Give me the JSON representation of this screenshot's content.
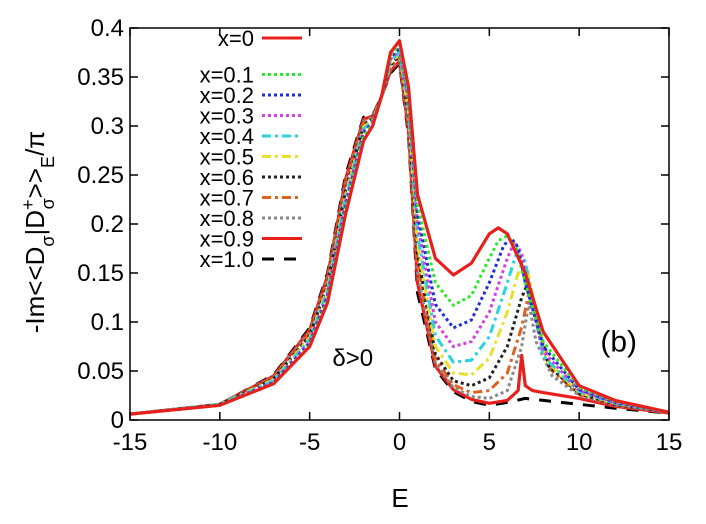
{
  "chart_data": {
    "type": "line",
    "title": "",
    "xlabel": "E",
    "ylabel_parts": {
      "prefix": "-Im<<D",
      "sub1": "σ",
      "mid": "|D",
      "sup": "+",
      "sub2": "σ",
      "after": ">>",
      "sub3": "E",
      "suffix": "/π"
    },
    "xlim": [
      -15,
      15
    ],
    "ylim": [
      0,
      0.4
    ],
    "x_ticks": [
      -15,
      -10,
      -5,
      0,
      5,
      10,
      15
    ],
    "x_tick_labels": [
      "-15",
      "-10",
      "-5",
      "0",
      "5",
      "10",
      "15"
    ],
    "y_ticks": [
      0,
      0.05,
      0.1,
      0.15,
      0.2,
      0.25,
      0.3,
      0.35,
      0.4
    ],
    "y_tick_labels": [
      "0",
      "0.05",
      "0.1",
      "0.15",
      "0.2",
      "0.25",
      "0.3",
      "0.35",
      "0.4"
    ],
    "grid": false,
    "legend_position": "top-left",
    "annotations": [
      {
        "text": "δ>0",
        "x": -2.6,
        "y": 0.055
      },
      {
        "text": "(b)",
        "x": 12.2,
        "y": 0.07
      }
    ],
    "series": [
      {
        "name": "x=0",
        "color": "#e8201c",
        "dash": "solid",
        "x": [
          -15,
          -10,
          -7,
          -5,
          -4,
          -3,
          -2,
          -1.5,
          -1,
          -0.5,
          0,
          0.5,
          1,
          2,
          3,
          4,
          5,
          5.5,
          6,
          7,
          8,
          10,
          12,
          15
        ],
        "y": [
          0.006,
          0.015,
          0.037,
          0.075,
          0.12,
          0.21,
          0.285,
          0.3,
          0.33,
          0.375,
          0.387,
          0.34,
          0.23,
          0.165,
          0.148,
          0.16,
          0.19,
          0.196,
          0.19,
          0.15,
          0.09,
          0.035,
          0.02,
          0.008
        ]
      },
      {
        "name": "x=0.1",
        "color": "#2ee82e",
        "dash": "dot",
        "x": [
          -15,
          -10,
          -7,
          -5,
          -4,
          -3,
          -2,
          -1.5,
          -1,
          -0.5,
          0,
          0.5,
          1,
          2,
          3,
          4,
          5,
          5.5,
          6,
          6.5,
          7,
          8,
          10,
          12,
          15
        ],
        "y": [
          0.006,
          0.015,
          0.037,
          0.076,
          0.123,
          0.214,
          0.29,
          0.302,
          0.33,
          0.372,
          0.383,
          0.333,
          0.22,
          0.14,
          0.117,
          0.127,
          0.165,
          0.183,
          0.188,
          0.175,
          0.14,
          0.08,
          0.033,
          0.019,
          0.008
        ]
      },
      {
        "name": "x=0.2",
        "color": "#1f2fd4",
        "dash": "dot",
        "x": [
          -15,
          -10,
          -7,
          -5,
          -4,
          -3,
          -2,
          -1.5,
          -1,
          -0.5,
          0,
          0.5,
          1,
          2,
          3,
          4,
          5,
          5.8,
          6.2,
          6.6,
          7,
          8,
          10,
          12,
          15
        ],
        "y": [
          0.006,
          0.015,
          0.038,
          0.078,
          0.126,
          0.218,
          0.293,
          0.303,
          0.33,
          0.37,
          0.38,
          0.33,
          0.21,
          0.118,
          0.094,
          0.102,
          0.14,
          0.178,
          0.186,
          0.176,
          0.14,
          0.075,
          0.031,
          0.018,
          0.008
        ]
      },
      {
        "name": "x=0.3",
        "color": "#d63fe0",
        "dash": "dot",
        "x": [
          -15,
          -10,
          -7,
          -5,
          -4,
          -3,
          -2,
          -1.5,
          -1,
          -0.5,
          0,
          0.5,
          1,
          2,
          3,
          4,
          5,
          6,
          6.4,
          6.8,
          7.2,
          8,
          10,
          12,
          15
        ],
        "y": [
          0.006,
          0.015,
          0.039,
          0.08,
          0.129,
          0.222,
          0.295,
          0.304,
          0.33,
          0.368,
          0.378,
          0.325,
          0.2,
          0.1,
          0.075,
          0.08,
          0.11,
          0.165,
          0.182,
          0.17,
          0.13,
          0.07,
          0.03,
          0.018,
          0.008
        ]
      },
      {
        "name": "x=0.4",
        "color": "#27d4e0",
        "dash": "dashdot",
        "x": [
          -15,
          -10,
          -7,
          -5,
          -4,
          -3,
          -2,
          -1.5,
          -1,
          -0.5,
          0,
          0.5,
          1,
          2,
          3,
          4,
          5,
          6,
          6.5,
          7,
          7.4,
          8,
          10,
          12,
          15
        ],
        "y": [
          0.006,
          0.016,
          0.04,
          0.082,
          0.132,
          0.226,
          0.297,
          0.305,
          0.33,
          0.366,
          0.376,
          0.32,
          0.19,
          0.086,
          0.059,
          0.061,
          0.085,
          0.14,
          0.17,
          0.162,
          0.12,
          0.065,
          0.029,
          0.017,
          0.008
        ]
      },
      {
        "name": "x=0.5",
        "color": "#e8e02a",
        "dash": "dashdot",
        "x": [
          -15,
          -10,
          -7,
          -5,
          -4,
          -3,
          -2,
          -1.5,
          -1,
          -0.5,
          0,
          0.5,
          1,
          2,
          3,
          4,
          5,
          6,
          6.6,
          7.1,
          7.6,
          8.2,
          10,
          12,
          15
        ],
        "y": [
          0.006,
          0.016,
          0.041,
          0.084,
          0.135,
          0.23,
          0.299,
          0.306,
          0.33,
          0.364,
          0.374,
          0.315,
          0.18,
          0.075,
          0.048,
          0.046,
          0.063,
          0.11,
          0.15,
          0.155,
          0.11,
          0.06,
          0.028,
          0.017,
          0.008
        ]
      },
      {
        "name": "x=0.6",
        "color": "#222222",
        "dash": "dot",
        "x": [
          -15,
          -10,
          -7,
          -5,
          -4,
          -3,
          -2,
          -1.5,
          -1,
          -0.5,
          0,
          0.5,
          1,
          2,
          3,
          4,
          5,
          6,
          6.8,
          7.2,
          7.7,
          8.3,
          10,
          12,
          15
        ],
        "y": [
          0.006,
          0.016,
          0.042,
          0.086,
          0.138,
          0.234,
          0.301,
          0.307,
          0.33,
          0.362,
          0.372,
          0.31,
          0.17,
          0.067,
          0.04,
          0.035,
          0.043,
          0.075,
          0.125,
          0.142,
          0.1,
          0.055,
          0.027,
          0.016,
          0.008
        ]
      },
      {
        "name": "x=0.7",
        "color": "#e06020",
        "dash": "dashdot",
        "x": [
          -15,
          -10,
          -7,
          -5,
          -4,
          -3,
          -2,
          -1.5,
          -1,
          -0.5,
          0,
          0.5,
          1,
          2,
          3,
          4,
          5,
          6,
          6.8,
          7.2,
          7.8,
          8.5,
          10,
          12,
          15
        ],
        "y": [
          0.006,
          0.016,
          0.043,
          0.088,
          0.141,
          0.238,
          0.303,
          0.308,
          0.33,
          0.36,
          0.37,
          0.305,
          0.16,
          0.062,
          0.036,
          0.028,
          0.03,
          0.048,
          0.095,
          0.13,
          0.09,
          0.05,
          0.026,
          0.016,
          0.008
        ]
      },
      {
        "name": "x=0.8",
        "color": "#888888",
        "dash": "dot",
        "x": [
          -15,
          -10,
          -7,
          -5,
          -4,
          -3,
          -2,
          -1.5,
          -1,
          -0.5,
          0,
          0.5,
          1,
          2,
          3,
          4,
          5,
          6,
          6.8,
          7.2,
          7.6,
          8.5,
          10,
          12,
          15
        ],
        "y": [
          0.006,
          0.016,
          0.044,
          0.09,
          0.144,
          0.242,
          0.305,
          0.309,
          0.33,
          0.358,
          0.368,
          0.3,
          0.15,
          0.058,
          0.033,
          0.024,
          0.022,
          0.03,
          0.075,
          0.12,
          0.08,
          0.045,
          0.025,
          0.015,
          0.008
        ]
      },
      {
        "name": "x=0.9",
        "color": "#e8201c",
        "dash": "solid",
        "x": [
          -15,
          -10,
          -7,
          -5,
          -4,
          -3,
          -2,
          -1.5,
          -1,
          -0.5,
          0,
          0.5,
          1,
          2,
          3,
          4,
          5,
          6,
          6.6,
          6.8,
          7,
          7.4,
          8,
          10,
          12,
          15
        ],
        "y": [
          0.006,
          0.016,
          0.045,
          0.092,
          0.147,
          0.246,
          0.307,
          0.31,
          0.33,
          0.356,
          0.366,
          0.295,
          0.14,
          0.055,
          0.031,
          0.021,
          0.017,
          0.02,
          0.03,
          0.066,
          0.035,
          0.03,
          0.028,
          0.022,
          0.014,
          0.007
        ]
      },
      {
        "name": "x=1.0",
        "color": "#000000",
        "dash": "dash",
        "x": [
          -15,
          -10,
          -7,
          -5,
          -4,
          -3,
          -2,
          -1.5,
          -1,
          -0.5,
          0,
          0.5,
          1,
          2,
          3,
          4,
          5,
          6,
          7,
          8,
          10,
          12,
          15
        ],
        "y": [
          0.006,
          0.016,
          0.046,
          0.094,
          0.15,
          0.25,
          0.309,
          0.311,
          0.33,
          0.354,
          0.364,
          0.29,
          0.13,
          0.052,
          0.029,
          0.019,
          0.015,
          0.018,
          0.022,
          0.02,
          0.016,
          0.012,
          0.007
        ]
      }
    ]
  }
}
